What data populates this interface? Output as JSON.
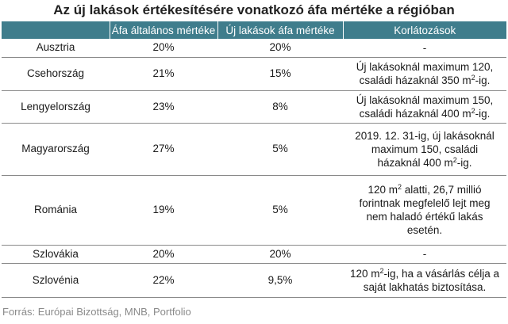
{
  "title": "Az új lakások értékesítésére vonatkozó áfa mértéke a régióban",
  "columns": [
    "",
    "Áfa általános mértéke",
    "Új lakások áfa mértéke",
    "Korlátozások"
  ],
  "rows": [
    {
      "country": "Ausztria",
      "general": "20%",
      "new": "20%",
      "restriction": [
        "-"
      ]
    },
    {
      "country": "Csehország",
      "general": "21%",
      "new": "15%",
      "restriction": [
        "Új lakásoknál maximum 120,",
        "családi házaknál 350 m",
        "2",
        "-ig."
      ]
    },
    {
      "country": "Lengyelország",
      "general": "23%",
      "new": "8%",
      "restriction": [
        "Új lakásoknál maximum 150,",
        "családi házaknál 400 m",
        "2",
        "-ig."
      ]
    },
    {
      "country": "Magyarország",
      "general": "27%",
      "new": "5%",
      "restriction": [
        "2019. 12. 31-ig, új lakásoknál",
        "maximum 150, családi",
        "házaknál 400 m",
        "2",
        "-ig."
      ]
    },
    {
      "country": "Románia",
      "general": "19%",
      "new": "5%",
      "restriction": [
        "120 m",
        "2",
        " alatti, 26,7 millió",
        "forintnak megfelelő lejt meg",
        "nem haladó értékű lakás",
        "esetén."
      ]
    },
    {
      "country": "Szlovákia",
      "general": "20%",
      "new": "20%",
      "restriction": [
        "-"
      ]
    },
    {
      "country": "Szlovénia",
      "general": "22%",
      "new": "9,5%",
      "restriction": [
        "120 m",
        "2",
        "-ig, ha a vásárlás célja a",
        "saját lakhatás biztosítása."
      ]
    }
  ],
  "source": "Forrás: Európai Bizottság, MNB, Portfolio",
  "colors": {
    "header_bg": "#3f7d8c",
    "header_text": "#ffffff",
    "row_border": "#8a8a8a",
    "source_text": "#8a8a8a"
  }
}
